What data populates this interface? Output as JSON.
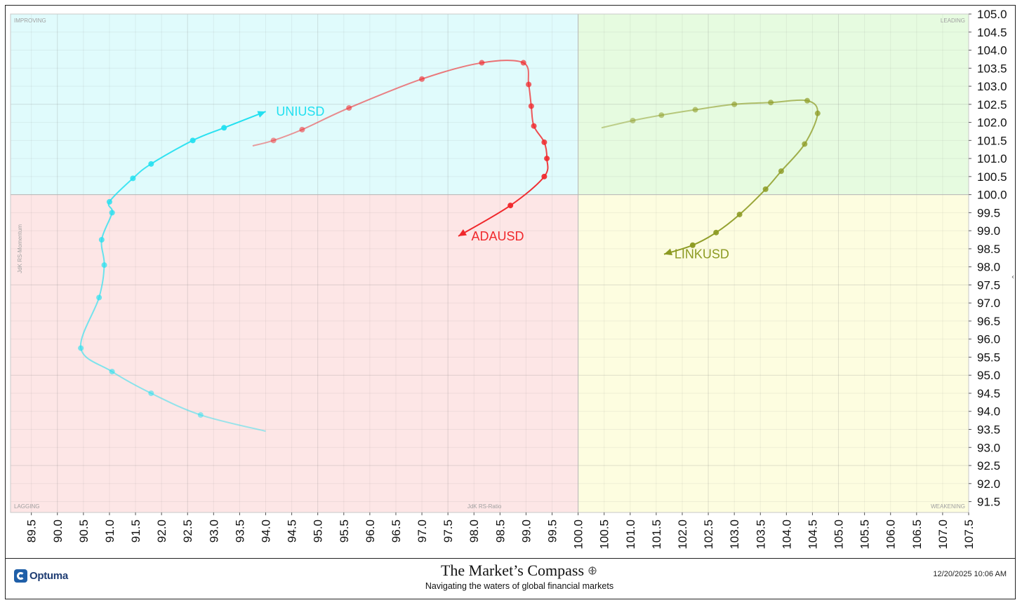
{
  "chart_data": {
    "type": "scatter",
    "xlabel": "JdK RS-Ratio",
    "ylabel": "JdK RS-Momentum",
    "xlim": [
      89.1,
      107.5
    ],
    "ylim": [
      91.2,
      105.0
    ],
    "center": [
      100.0,
      100.0
    ],
    "x_ticks": [
      "89.5",
      "90.0",
      "90.5",
      "91.0",
      "91.5",
      "92.0",
      "92.5",
      "93.0",
      "93.5",
      "94.0",
      "94.5",
      "95.0",
      "95.5",
      "96.0",
      "96.5",
      "97.0",
      "97.5",
      "98.0",
      "98.5",
      "99.0",
      "99.5",
      "100.0",
      "100.5",
      "101.0",
      "101.5",
      "102.0",
      "102.5",
      "103.0",
      "103.5",
      "104.0",
      "104.5",
      "105.0",
      "105.5",
      "106.0",
      "106.5",
      "107.0",
      "107.5"
    ],
    "y_ticks": [
      "91.5",
      "92.0",
      "92.5",
      "93.0",
      "93.5",
      "94.0",
      "94.5",
      "95.0",
      "95.5",
      "96.0",
      "96.5",
      "97.0",
      "97.5",
      "98.0",
      "98.5",
      "99.0",
      "99.5",
      "100.0",
      "100.5",
      "101.0",
      "101.5",
      "102.0",
      "102.5",
      "103.0",
      "103.5",
      "104.0",
      "104.5",
      "105.0"
    ],
    "quadrants": {
      "improving": {
        "label": "IMPROVING",
        "color": "#e0fbfc"
      },
      "leading": {
        "label": "LEADING",
        "color": "#e6fbe0"
      },
      "lagging": {
        "label": "LAGGING",
        "color": "#fde6e6"
      },
      "weakening": {
        "label": "WEAKENING",
        "color": "#fdfde0"
      }
    },
    "grid": true,
    "series": [
      {
        "name": "UNIUSD",
        "color": "#22e0f0",
        "points": [
          [
            94.0,
            93.45
          ],
          [
            92.75,
            93.9
          ],
          [
            91.8,
            94.5
          ],
          [
            91.05,
            95.1
          ],
          [
            90.45,
            95.75
          ],
          [
            90.8,
            97.15
          ],
          [
            90.9,
            98.05
          ],
          [
            90.85,
            98.75
          ],
          [
            91.05,
            99.5
          ],
          [
            91.0,
            99.8
          ],
          [
            91.45,
            100.45
          ],
          [
            91.8,
            100.85
          ],
          [
            92.6,
            101.5
          ],
          [
            93.2,
            101.85
          ],
          [
            94.0,
            102.3
          ]
        ],
        "markers": [
          1,
          2,
          3,
          4,
          5,
          6,
          7,
          8,
          9,
          10,
          11,
          12,
          13
        ],
        "label_pos": [
          94.2,
          102.3
        ]
      },
      {
        "name": "ADAUSD",
        "color": "#f0282c",
        "points": [
          [
            93.75,
            101.35
          ],
          [
            94.15,
            101.5
          ],
          [
            94.7,
            101.8
          ],
          [
            95.6,
            102.4
          ],
          [
            97.0,
            103.2
          ],
          [
            98.15,
            103.65
          ],
          [
            98.95,
            103.65
          ],
          [
            99.05,
            103.05
          ],
          [
            99.1,
            102.45
          ],
          [
            99.15,
            101.9
          ],
          [
            99.35,
            101.45
          ],
          [
            99.4,
            101.0
          ],
          [
            99.35,
            100.5
          ],
          [
            98.7,
            99.7
          ],
          [
            97.7,
            98.85
          ]
        ],
        "markers": [
          1,
          2,
          3,
          4,
          5,
          6,
          7,
          8,
          9,
          10,
          11,
          12,
          13
        ],
        "label_pos": [
          97.95,
          98.85
        ]
      },
      {
        "name": "LINKUSD",
        "color": "#8c9a22",
        "points": [
          [
            100.45,
            101.85
          ],
          [
            101.05,
            102.05
          ],
          [
            101.6,
            102.2
          ],
          [
            102.25,
            102.35
          ],
          [
            103.0,
            102.5
          ],
          [
            103.7,
            102.55
          ],
          [
            104.4,
            102.6
          ],
          [
            104.6,
            102.25
          ],
          [
            104.35,
            101.4
          ],
          [
            103.9,
            100.65
          ],
          [
            103.6,
            100.15
          ],
          [
            103.1,
            99.45
          ],
          [
            102.65,
            98.95
          ],
          [
            102.2,
            98.6
          ],
          [
            101.65,
            98.35
          ]
        ],
        "markers": [
          1,
          2,
          3,
          4,
          5,
          6,
          7,
          8,
          9,
          10,
          11,
          12,
          13
        ],
        "label_pos": [
          101.85,
          98.35
        ]
      }
    ]
  },
  "footer": {
    "logo_text": "Optuma",
    "brand_title": "The Market’s Compass",
    "brand_subtitle": "Navigating the waters of global financial markets",
    "datestamp": "12/20/2025 10:06 AM"
  }
}
